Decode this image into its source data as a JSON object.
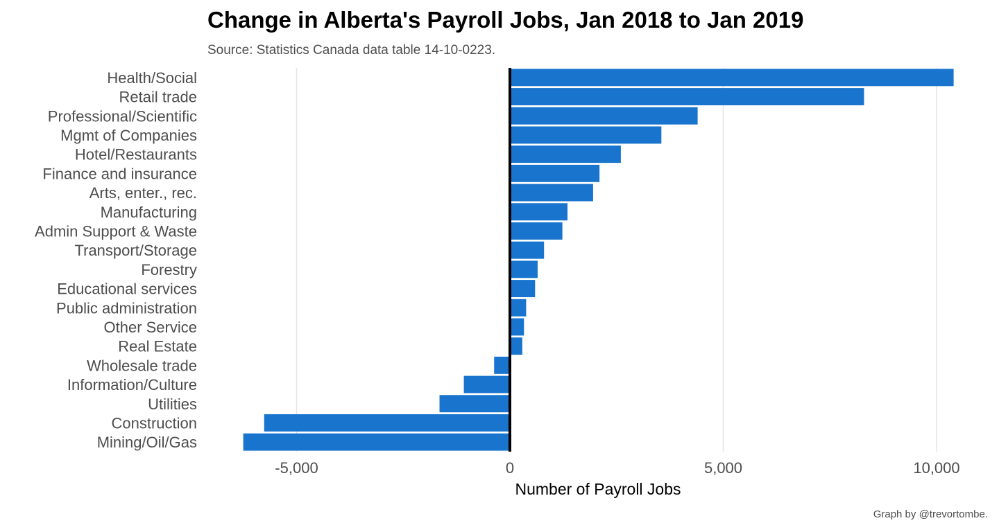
{
  "chart_data": {
    "type": "bar",
    "orientation": "horizontal",
    "title": "Change in Alberta's Payroll Jobs, Jan 2018 to Jan 2019",
    "subtitle": "Source: Statistics Canada data table 14-10-0223.",
    "caption": "Graph by @trevortombe.",
    "xlabel": "Number of Payroll Jobs",
    "ylabel": "",
    "xlim": [
      -7000,
      11000
    ],
    "xticks": [
      {
        "value": -5000,
        "label": "-5,000"
      },
      {
        "value": 0,
        "label": "0"
      },
      {
        "value": 5000,
        "label": "5,000"
      },
      {
        "value": 10000,
        "label": "10,000"
      }
    ],
    "grid": "vertical-major",
    "zero_line": true,
    "bar_color": "#1874cd",
    "categories": [
      "Health/Social",
      "Retail trade",
      "Professional/Scientific",
      "Mgmt of Companies",
      "Hotel/Restaurants",
      "Finance and insurance",
      "Arts, enter., rec.",
      "Manufacturing",
      "Admin Support & Waste",
      "Transport/Storage",
      "Forestry",
      "Educational services",
      "Public administration",
      "Other Service",
      "Real Estate",
      "Wholesale trade",
      "Information/Culture",
      "Utilities",
      "Construction",
      "Mining/Oil/Gas"
    ],
    "values": [
      10400,
      8300,
      4400,
      3550,
      2600,
      2100,
      1950,
      1350,
      1230,
      800,
      650,
      590,
      380,
      330,
      290,
      -370,
      -1080,
      -1650,
      -5760,
      -6250
    ]
  }
}
